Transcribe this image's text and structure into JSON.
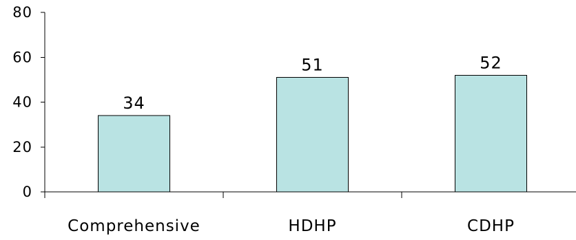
{
  "chart_data": {
    "type": "bar",
    "categories": [
      "Comprehensive",
      "HDHP",
      "CDHP"
    ],
    "values": [
      34,
      51,
      52
    ],
    "data_labels": [
      "34",
      "51",
      "52"
    ],
    "title": "",
    "xlabel": "",
    "ylabel": "",
    "ylim": [
      0,
      80
    ],
    "yticks": [
      0,
      20,
      40,
      60,
      80
    ],
    "grid": false,
    "legend": "none",
    "bar_color": "#b9e3e3",
    "bar_edge_color": "#000000"
  }
}
